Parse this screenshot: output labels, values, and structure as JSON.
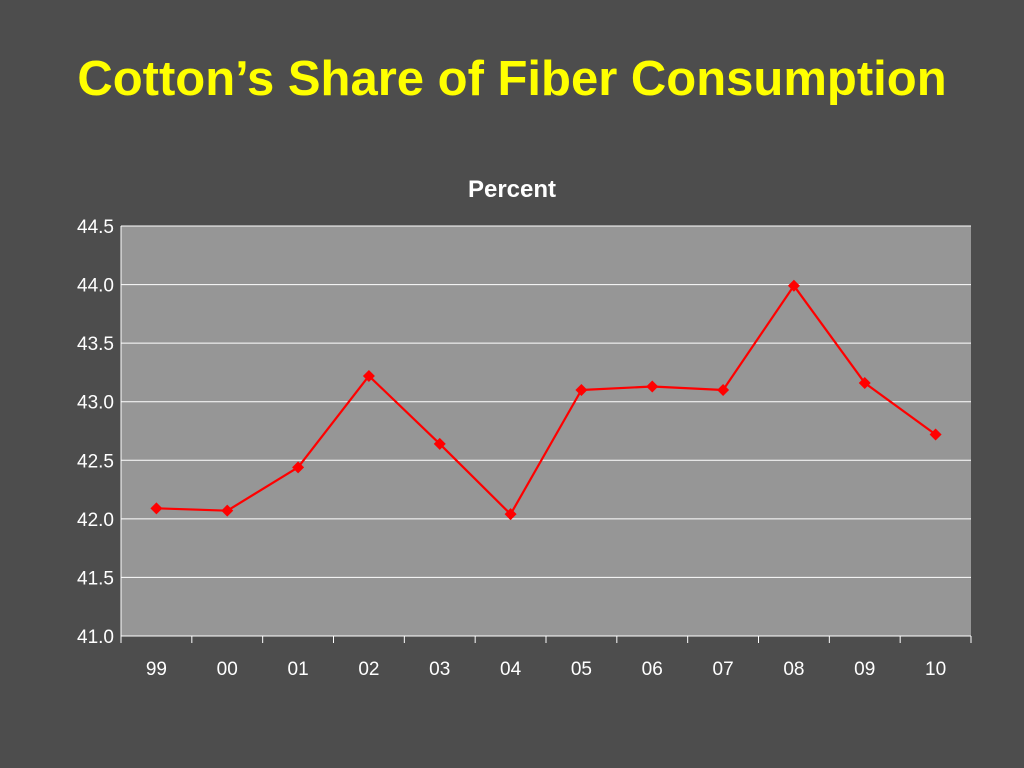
{
  "slide": {
    "title": "Cotton’s Share of Fiber Consumption"
  },
  "colors": {
    "background": "#4d4d4d",
    "title": "#ffff00",
    "plot_area": "#969696",
    "gridline": "#ffffff",
    "series": "#ff0000",
    "text": "#ffffff"
  },
  "chart_data": {
    "type": "line",
    "title": "Percent",
    "xlabel": "",
    "ylabel": "",
    "categories": [
      "99",
      "00",
      "01",
      "02",
      "03",
      "04",
      "05",
      "06",
      "07",
      "08",
      "09",
      "10"
    ],
    "series": [
      {
        "values": [
          42.09,
          42.07,
          42.44,
          43.22,
          42.64,
          42.04,
          43.1,
          43.13,
          43.1,
          43.99,
          43.16,
          42.72
        ],
        "marker": "diamond"
      }
    ],
    "ylim": [
      41.0,
      44.5
    ],
    "yticks": [
      "41.0",
      "41.5",
      "42.0",
      "42.5",
      "43.0",
      "43.5",
      "44.0",
      "44.5"
    ],
    "grid": true,
    "legend": "none"
  }
}
